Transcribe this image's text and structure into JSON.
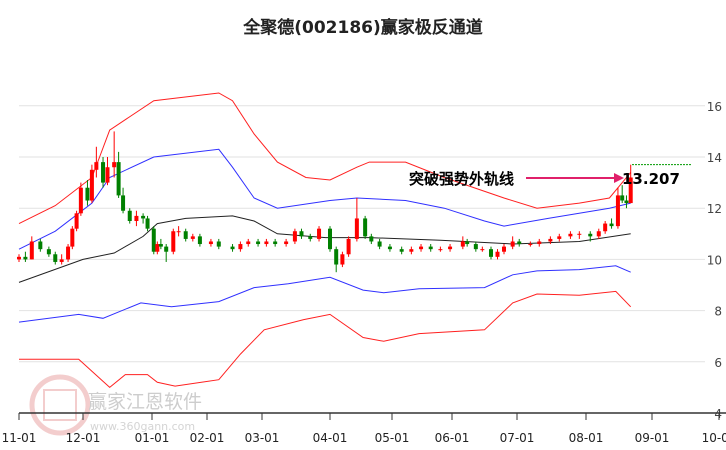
{
  "title": "全聚德(002186)赢家极反通道",
  "watermark": {
    "brand": "赢家江恩软件",
    "site": "www.360gann.com",
    "seal": "江恩赢家"
  },
  "chart_data": {
    "type": "candlestick",
    "title": "全聚德(002186)赢家极反通道",
    "xlabel": "",
    "ylabel": "",
    "ylim": [
      4,
      16.5
    ],
    "yticks": [
      4,
      6,
      8,
      10,
      12,
      14,
      16
    ],
    "xticks": [
      "11-01",
      "12-01",
      "01-01",
      "02-01",
      "03-01",
      "04-01",
      "05-01",
      "06-01",
      "07-01",
      "08-01",
      "09-01",
      "10-01"
    ],
    "grid": true,
    "colors": {
      "up": "#ff0000",
      "down": "#008000",
      "outer_band": "#ff2020",
      "inner_band": "#3030ff",
      "middle": "#222222",
      "annotation_arrow": "#e0206a",
      "marker_line": "#009900"
    },
    "candles_ohlc": [
      [
        "11-01",
        10.0,
        10.2,
        9.9,
        10.1
      ],
      [
        "11-04",
        10.1,
        10.3,
        9.9,
        10.0
      ],
      [
        "11-07",
        10.0,
        10.9,
        10.0,
        10.7
      ],
      [
        "11-11",
        10.7,
        10.8,
        10.3,
        10.4
      ],
      [
        "11-15",
        10.4,
        10.5,
        10.1,
        10.2
      ],
      [
        "11-18",
        10.2,
        10.3,
        9.8,
        9.9
      ],
      [
        "11-21",
        9.9,
        10.2,
        9.8,
        10.0
      ],
      [
        "11-24",
        10.0,
        10.6,
        9.9,
        10.5
      ],
      [
        "11-26",
        10.5,
        11.3,
        10.4,
        11.2
      ],
      [
        "11-28",
        11.2,
        11.9,
        11.1,
        11.8
      ],
      [
        "11-30",
        11.8,
        13.0,
        11.7,
        12.8
      ],
      [
        "12-03",
        12.8,
        13.1,
        12.1,
        12.3
      ],
      [
        "12-05",
        12.3,
        13.7,
        12.2,
        13.5
      ],
      [
        "12-07",
        13.5,
        14.4,
        13.2,
        13.8
      ],
      [
        "12-10",
        13.8,
        14.0,
        12.8,
        13.0
      ],
      [
        "12-12",
        13.0,
        14.0,
        12.9,
        13.6
      ],
      [
        "12-15",
        13.6,
        15.0,
        13.2,
        13.8
      ],
      [
        "12-17",
        13.8,
        14.2,
        12.4,
        12.5
      ],
      [
        "12-19",
        12.5,
        12.8,
        11.8,
        11.9
      ],
      [
        "12-22",
        11.9,
        12.0,
        11.4,
        11.5
      ],
      [
        "12-25",
        11.5,
        11.9,
        11.3,
        11.7
      ],
      [
        "12-28",
        11.7,
        11.8,
        11.4,
        11.6
      ],
      [
        "12-30",
        11.6,
        11.7,
        11.1,
        11.2
      ],
      [
        "01-02",
        11.2,
        11.3,
        10.2,
        10.3
      ],
      [
        "01-04",
        10.3,
        10.7,
        10.2,
        10.6
      ],
      [
        "01-06",
        10.6,
        10.8,
        10.4,
        10.5
      ],
      [
        "01-09",
        10.5,
        10.6,
        9.9,
        10.3
      ],
      [
        "01-13",
        10.3,
        11.2,
        10.2,
        11.1
      ],
      [
        "01-16",
        11.1,
        11.3,
        10.9,
        11.1
      ],
      [
        "01-20",
        11.1,
        11.2,
        10.7,
        10.8
      ],
      [
        "01-24",
        10.8,
        11.0,
        10.7,
        10.9
      ],
      [
        "01-28",
        10.9,
        11.0,
        10.5,
        10.6
      ],
      [
        "02-03",
        10.6,
        10.8,
        10.5,
        10.7
      ],
      [
        "02-07",
        10.7,
        10.8,
        10.4,
        10.5
      ],
      [
        "02-14",
        10.5,
        10.6,
        10.3,
        10.4
      ],
      [
        "02-18",
        10.4,
        10.7,
        10.3,
        10.6
      ],
      [
        "02-22",
        10.6,
        10.8,
        10.5,
        10.7
      ],
      [
        "02-27",
        10.7,
        10.8,
        10.5,
        10.6
      ],
      [
        "03-03",
        10.6,
        10.8,
        10.5,
        10.7
      ],
      [
        "03-07",
        10.7,
        10.8,
        10.5,
        10.6
      ],
      [
        "03-12",
        10.6,
        10.8,
        10.5,
        10.7
      ],
      [
        "03-16",
        10.7,
        11.2,
        10.6,
        11.1
      ],
      [
        "03-19",
        11.1,
        11.2,
        10.8,
        10.9
      ],
      [
        "03-23",
        10.9,
        11.0,
        10.7,
        10.8
      ],
      [
        "03-27",
        10.8,
        11.3,
        10.7,
        11.2
      ],
      [
        "04-01",
        11.2,
        11.3,
        10.3,
        10.4
      ],
      [
        "04-04",
        10.4,
        10.5,
        9.5,
        9.8
      ],
      [
        "04-07",
        9.8,
        10.3,
        9.7,
        10.2
      ],
      [
        "04-10",
        10.2,
        10.9,
        10.1,
        10.8
      ],
      [
        "04-14",
        10.8,
        12.4,
        10.7,
        11.6
      ],
      [
        "04-18",
        11.6,
        11.7,
        10.8,
        10.9
      ],
      [
        "04-21",
        10.9,
        11.0,
        10.6,
        10.7
      ],
      [
        "04-25",
        10.7,
        10.8,
        10.4,
        10.5
      ],
      [
        "04-30",
        10.5,
        10.6,
        10.3,
        10.4
      ],
      [
        "05-06",
        10.4,
        10.5,
        10.2,
        10.3
      ],
      [
        "05-11",
        10.3,
        10.5,
        10.2,
        10.4
      ],
      [
        "05-16",
        10.4,
        10.6,
        10.3,
        10.5
      ],
      [
        "05-21",
        10.5,
        10.6,
        10.3,
        10.4
      ],
      [
        "05-26",
        10.4,
        10.5,
        10.3,
        10.4
      ],
      [
        "05-31",
        10.4,
        10.6,
        10.3,
        10.5
      ],
      [
        "06-06",
        10.5,
        10.9,
        10.4,
        10.7
      ],
      [
        "06-08",
        10.7,
        10.8,
        10.5,
        10.6
      ],
      [
        "06-12",
        10.6,
        10.7,
        10.3,
        10.4
      ],
      [
        "06-15",
        10.4,
        10.5,
        10.3,
        10.4
      ],
      [
        "06-19",
        10.4,
        10.5,
        10.0,
        10.1
      ],
      [
        "06-22",
        10.1,
        10.4,
        10.0,
        10.3
      ],
      [
        "06-25",
        10.3,
        10.6,
        10.2,
        10.5
      ],
      [
        "06-29",
        10.5,
        10.9,
        10.4,
        10.7
      ],
      [
        "07-02",
        10.7,
        10.8,
        10.5,
        10.6
      ],
      [
        "07-07",
        10.6,
        10.7,
        10.5,
        10.6
      ],
      [
        "07-11",
        10.6,
        10.8,
        10.5,
        10.7
      ],
      [
        "07-16",
        10.7,
        10.9,
        10.6,
        10.8
      ],
      [
        "07-20",
        10.8,
        11.0,
        10.7,
        10.9
      ],
      [
        "07-25",
        10.9,
        11.1,
        10.8,
        11.0
      ],
      [
        "07-29",
        11.0,
        11.1,
        10.8,
        11.0
      ],
      [
        "08-03",
        11.0,
        11.1,
        10.7,
        10.9
      ],
      [
        "08-07",
        10.9,
        11.2,
        10.8,
        11.1
      ],
      [
        "08-10",
        11.1,
        11.5,
        11.0,
        11.4
      ],
      [
        "08-13",
        11.4,
        11.6,
        11.2,
        11.3
      ],
      [
        "08-16",
        11.3,
        12.8,
        11.2,
        12.5
      ],
      [
        "08-18",
        12.5,
        12.9,
        12.2,
        12.3
      ],
      [
        "08-20",
        12.3,
        12.5,
        12.0,
        12.2
      ],
      [
        "08-22",
        12.2,
        13.7,
        12.2,
        13.2
      ]
    ],
    "series": [
      {
        "role": "outer-upper",
        "points": [
          [
            "11-01",
            11.4
          ],
          [
            "11-18",
            12.1
          ],
          [
            "12-05",
            13.2
          ],
          [
            "12-13",
            15.05
          ],
          [
            "01-02",
            16.2
          ],
          [
            "02-07",
            16.5
          ],
          [
            "02-14",
            16.2
          ],
          [
            "02-25",
            14.9
          ],
          [
            "03-08",
            13.8
          ],
          [
            "03-21",
            13.2
          ],
          [
            "04-01",
            13.1
          ],
          [
            "04-14",
            13.6
          ],
          [
            "04-20",
            13.8
          ],
          [
            "05-08",
            13.8
          ],
          [
            "05-28",
            13.2
          ],
          [
            "06-25",
            12.4
          ],
          [
            "07-10",
            12.0
          ],
          [
            "07-29",
            12.2
          ],
          [
            "08-12",
            12.4
          ],
          [
            "08-22",
            13.4
          ]
        ]
      },
      {
        "role": "inner-upper",
        "points": [
          [
            "11-01",
            10.4
          ],
          [
            "11-18",
            11.1
          ],
          [
            "12-05",
            12.2
          ],
          [
            "12-13",
            13.2
          ],
          [
            "01-02",
            14.0
          ],
          [
            "02-07",
            14.3
          ],
          [
            "02-14",
            13.6
          ],
          [
            "02-25",
            12.4
          ],
          [
            "03-08",
            12.0
          ],
          [
            "04-01",
            12.3
          ],
          [
            "04-14",
            12.4
          ],
          [
            "05-08",
            12.3
          ],
          [
            "05-28",
            12.0
          ],
          [
            "06-16",
            11.5
          ],
          [
            "06-25",
            11.3
          ],
          [
            "07-15",
            11.6
          ],
          [
            "08-12",
            12.0
          ],
          [
            "08-22",
            12.2
          ]
        ]
      },
      {
        "role": "middle",
        "points": [
          [
            "11-01",
            9.1
          ],
          [
            "12-01",
            10.0
          ],
          [
            "12-15",
            10.25
          ],
          [
            "12-28",
            10.9
          ],
          [
            "01-04",
            11.4
          ],
          [
            "01-20",
            11.6
          ],
          [
            "02-14",
            11.7
          ],
          [
            "02-25",
            11.5
          ],
          [
            "03-08",
            11.0
          ],
          [
            "03-30",
            10.85
          ],
          [
            "04-20",
            10.85
          ],
          [
            "05-26",
            10.75
          ],
          [
            "06-29",
            10.6
          ],
          [
            "07-29",
            10.7
          ],
          [
            "08-22",
            11.0
          ]
        ]
      },
      {
        "role": "inner-lower",
        "points": [
          [
            "11-01",
            7.55
          ],
          [
            "11-29",
            7.85
          ],
          [
            "12-10",
            7.7
          ],
          [
            "12-27",
            8.3
          ],
          [
            "01-12",
            8.15
          ],
          [
            "02-07",
            8.35
          ],
          [
            "02-25",
            8.9
          ],
          [
            "03-13",
            9.05
          ],
          [
            "04-01",
            9.3
          ],
          [
            "04-17",
            8.8
          ],
          [
            "04-27",
            8.7
          ],
          [
            "05-15",
            8.85
          ],
          [
            "06-16",
            8.9
          ],
          [
            "06-29",
            9.4
          ],
          [
            "07-10",
            9.55
          ],
          [
            "07-29",
            9.6
          ],
          [
            "08-15",
            9.75
          ],
          [
            "08-22",
            9.5
          ]
        ]
      },
      {
        "role": "outer-lower",
        "points": [
          [
            "11-01",
            6.1
          ],
          [
            "11-29",
            6.1
          ],
          [
            "12-13",
            5.0
          ],
          [
            "12-20",
            5.5
          ],
          [
            "12-30",
            5.5
          ],
          [
            "01-04",
            5.2
          ],
          [
            "01-14",
            5.05
          ],
          [
            "02-07",
            5.3
          ],
          [
            "02-18",
            6.3
          ],
          [
            "03-02",
            7.25
          ],
          [
            "03-20",
            7.65
          ],
          [
            "04-01",
            7.85
          ],
          [
            "04-17",
            6.95
          ],
          [
            "04-27",
            6.8
          ],
          [
            "05-15",
            7.1
          ],
          [
            "06-16",
            7.25
          ],
          [
            "06-29",
            8.3
          ],
          [
            "07-10",
            8.65
          ],
          [
            "07-29",
            8.6
          ],
          [
            "08-15",
            8.75
          ],
          [
            "08-22",
            8.15
          ]
        ]
      }
    ],
    "annotation": {
      "text": "突破强势外轨线",
      "value_label": "13.207",
      "marker_level": 13.7
    }
  }
}
